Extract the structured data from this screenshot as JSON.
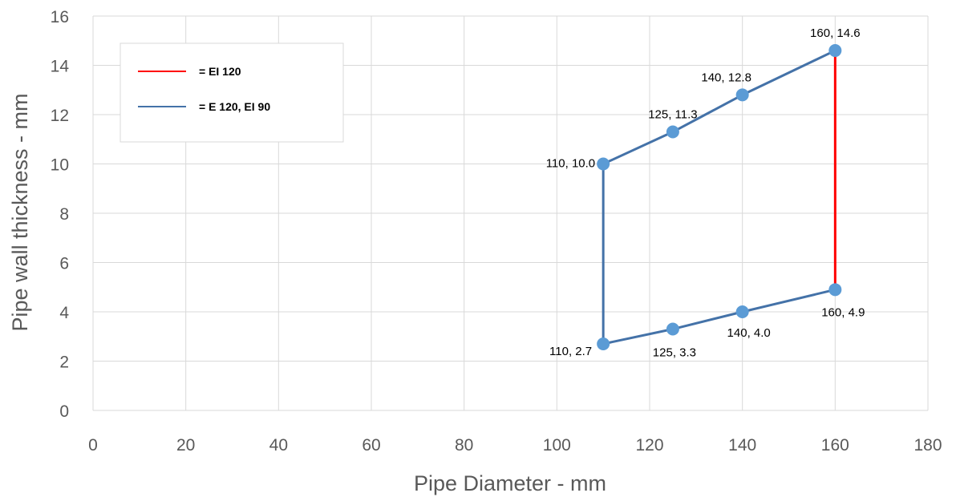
{
  "chart_data": {
    "type": "scatter",
    "xlabel": "Pipe Diameter - mm",
    "ylabel": "Pipe wall thickness - mm",
    "xlim": [
      0,
      180
    ],
    "ylim": [
      0,
      16
    ],
    "xticks": [
      0,
      20,
      40,
      60,
      80,
      100,
      120,
      140,
      160,
      180
    ],
    "yticks": [
      0,
      2,
      4,
      6,
      8,
      10,
      12,
      14,
      16
    ],
    "grid": true,
    "legend_position": "top-left",
    "series": [
      {
        "name": "= EI 120",
        "color": "#ff0000",
        "points": [
          {
            "x": 160,
            "y": 14.6
          },
          {
            "x": 160,
            "y": 4.9
          }
        ]
      },
      {
        "name": "= E 120, EI 90",
        "color": "#4472a8",
        "points": [
          {
            "x": 110,
            "y": 10.0,
            "label": "110, 10.0"
          },
          {
            "x": 125,
            "y": 11.3,
            "label": "125, 11.3"
          },
          {
            "x": 140,
            "y": 12.8,
            "label": "140, 12.8"
          },
          {
            "x": 160,
            "y": 14.6,
            "label": "160, 14.6"
          },
          {
            "x": 110,
            "y": 2.7,
            "label": "110, 2.7"
          },
          {
            "x": 125,
            "y": 3.3,
            "label": "125, 3.3"
          },
          {
            "x": 140,
            "y": 4.0,
            "label": "140, 4.0"
          },
          {
            "x": 160,
            "y": 4.9,
            "label": "160, 4.9"
          }
        ]
      }
    ],
    "segments": [
      {
        "series": 1,
        "path": [
          [
            110,
            2.7
          ],
          [
            110,
            10.0
          ],
          [
            125,
            11.3
          ],
          [
            140,
            12.8
          ],
          [
            160,
            14.6
          ]
        ]
      },
      {
        "series": 1,
        "path": [
          [
            110,
            2.7
          ],
          [
            125,
            3.3
          ],
          [
            140,
            4.0
          ],
          [
            160,
            4.9
          ]
        ]
      },
      {
        "series": 0,
        "path": [
          [
            160,
            14.6
          ],
          [
            160,
            4.9
          ]
        ]
      }
    ],
    "marker_color": "#5b9bd5"
  }
}
